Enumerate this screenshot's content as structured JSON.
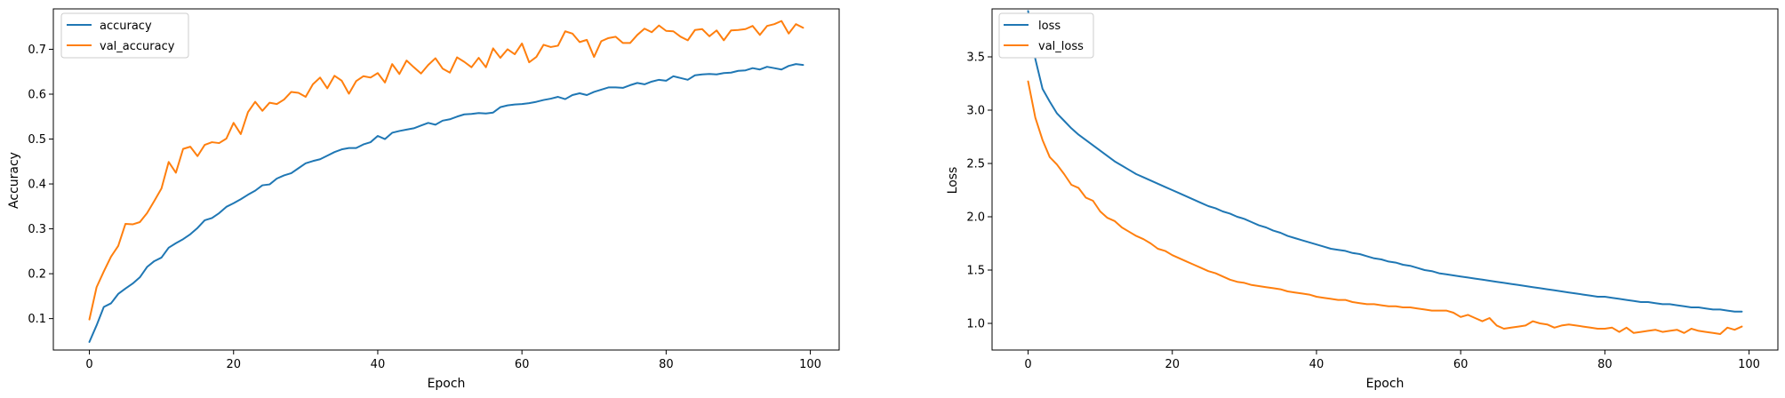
{
  "chart_data": [
    {
      "type": "line",
      "title": "",
      "xlabel": "Epoch",
      "ylabel": "Accuracy",
      "xlim": [
        -5,
        104
      ],
      "ylim": [
        0.03,
        0.79
      ],
      "xticks": [
        0,
        20,
        40,
        60,
        80,
        100
      ],
      "yticks": [
        0.1,
        0.2,
        0.3,
        0.4,
        0.5,
        0.6,
        0.7
      ],
      "legend_position": "top-left",
      "grid": false,
      "series": [
        {
          "name": "accuracy",
          "color": "#1f77b4",
          "values": [
            0.048,
            0.085,
            0.126,
            0.134,
            0.155,
            0.167,
            0.178,
            0.192,
            0.215,
            0.228,
            0.236,
            0.258,
            0.268,
            0.277,
            0.288,
            0.302,
            0.319,
            0.324,
            0.335,
            0.349,
            0.357,
            0.366,
            0.376,
            0.385,
            0.397,
            0.399,
            0.412,
            0.419,
            0.424,
            0.435,
            0.446,
            0.451,
            0.455,
            0.463,
            0.471,
            0.477,
            0.48,
            0.48,
            0.488,
            0.493,
            0.507,
            0.5,
            0.514,
            0.518,
            0.521,
            0.524,
            0.53,
            0.536,
            0.532,
            0.541,
            0.544,
            0.55,
            0.555,
            0.556,
            0.558,
            0.557,
            0.559,
            0.571,
            0.575,
            0.577,
            0.578,
            0.58,
            0.583,
            0.587,
            0.59,
            0.594,
            0.589,
            0.598,
            0.602,
            0.598,
            0.605,
            0.61,
            0.615,
            0.615,
            0.614,
            0.62,
            0.625,
            0.622,
            0.628,
            0.632,
            0.63,
            0.64,
            0.636,
            0.632,
            0.642,
            0.644,
            0.645,
            0.644,
            0.647,
            0.648,
            0.652,
            0.653,
            0.658,
            0.655,
            0.661,
            0.658,
            0.655,
            0.663,
            0.667,
            0.665
          ]
        },
        {
          "name": "val_accuracy",
          "color": "#ff7f0e",
          "values": [
            0.098,
            0.17,
            0.205,
            0.238,
            0.262,
            0.311,
            0.31,
            0.315,
            0.335,
            0.362,
            0.39,
            0.449,
            0.425,
            0.478,
            0.483,
            0.462,
            0.487,
            0.493,
            0.491,
            0.501,
            0.536,
            0.511,
            0.56,
            0.583,
            0.563,
            0.581,
            0.578,
            0.588,
            0.605,
            0.603,
            0.594,
            0.622,
            0.637,
            0.613,
            0.641,
            0.63,
            0.601,
            0.629,
            0.64,
            0.637,
            0.647,
            0.626,
            0.667,
            0.645,
            0.675,
            0.66,
            0.646,
            0.665,
            0.68,
            0.657,
            0.648,
            0.682,
            0.672,
            0.66,
            0.681,
            0.66,
            0.702,
            0.681,
            0.7,
            0.689,
            0.713,
            0.671,
            0.683,
            0.71,
            0.705,
            0.708,
            0.74,
            0.735,
            0.716,
            0.721,
            0.683,
            0.718,
            0.725,
            0.728,
            0.714,
            0.714,
            0.732,
            0.746,
            0.738,
            0.753,
            0.741,
            0.74,
            0.728,
            0.72,
            0.743,
            0.745,
            0.729,
            0.742,
            0.72,
            0.742,
            0.743,
            0.745,
            0.752,
            0.732,
            0.752,
            0.756,
            0.763,
            0.735,
            0.756,
            0.748
          ]
        }
      ]
    },
    {
      "type": "line",
      "title": "",
      "xlabel": "Epoch",
      "ylabel": "Loss",
      "xlim": [
        -5,
        104
      ],
      "ylim": [
        0.75,
        3.95
      ],
      "xticks": [
        0,
        20,
        40,
        60,
        80,
        100
      ],
      "yticks": [
        1.0,
        1.5,
        2.0,
        2.5,
        3.0,
        3.5
      ],
      "legend_position": "top-left",
      "grid": false,
      "series": [
        {
          "name": "loss",
          "color": "#1f77b4",
          "values": [
            3.93,
            3.48,
            3.2,
            3.08,
            2.97,
            2.9,
            2.83,
            2.77,
            2.72,
            2.67,
            2.62,
            2.57,
            2.52,
            2.48,
            2.44,
            2.4,
            2.37,
            2.34,
            2.31,
            2.28,
            2.25,
            2.22,
            2.19,
            2.16,
            2.13,
            2.1,
            2.08,
            2.05,
            2.03,
            2.0,
            1.98,
            1.95,
            1.92,
            1.9,
            1.87,
            1.85,
            1.82,
            1.8,
            1.78,
            1.76,
            1.74,
            1.72,
            1.7,
            1.69,
            1.68,
            1.66,
            1.65,
            1.63,
            1.61,
            1.6,
            1.58,
            1.57,
            1.55,
            1.54,
            1.52,
            1.5,
            1.49,
            1.47,
            1.46,
            1.45,
            1.44,
            1.43,
            1.42,
            1.41,
            1.4,
            1.39,
            1.38,
            1.37,
            1.36,
            1.35,
            1.34,
            1.33,
            1.32,
            1.31,
            1.3,
            1.29,
            1.28,
            1.27,
            1.26,
            1.25,
            1.25,
            1.24,
            1.23,
            1.22,
            1.21,
            1.2,
            1.2,
            1.19,
            1.18,
            1.18,
            1.17,
            1.16,
            1.15,
            1.15,
            1.14,
            1.13,
            1.13,
            1.12,
            1.11,
            1.11
          ]
        },
        {
          "name": "val_loss",
          "color": "#ff7f0e",
          "values": [
            3.27,
            2.93,
            2.72,
            2.56,
            2.49,
            2.4,
            2.3,
            2.27,
            2.18,
            2.15,
            2.05,
            1.99,
            1.96,
            1.9,
            1.86,
            1.82,
            1.79,
            1.75,
            1.7,
            1.68,
            1.64,
            1.61,
            1.58,
            1.55,
            1.52,
            1.49,
            1.47,
            1.44,
            1.41,
            1.39,
            1.38,
            1.36,
            1.35,
            1.34,
            1.33,
            1.32,
            1.3,
            1.29,
            1.28,
            1.27,
            1.25,
            1.24,
            1.23,
            1.22,
            1.22,
            1.2,
            1.19,
            1.18,
            1.18,
            1.17,
            1.16,
            1.16,
            1.15,
            1.15,
            1.14,
            1.13,
            1.12,
            1.12,
            1.12,
            1.1,
            1.06,
            1.08,
            1.05,
            1.02,
            1.05,
            0.98,
            0.95,
            0.96,
            0.97,
            0.98,
            1.02,
            1.0,
            0.99,
            0.96,
            0.98,
            0.99,
            0.98,
            0.97,
            0.96,
            0.95,
            0.95,
            0.96,
            0.92,
            0.96,
            0.91,
            0.92,
            0.93,
            0.94,
            0.92,
            0.93,
            0.94,
            0.91,
            0.95,
            0.93,
            0.92,
            0.91,
            0.9,
            0.96,
            0.94,
            0.97
          ]
        }
      ]
    }
  ]
}
